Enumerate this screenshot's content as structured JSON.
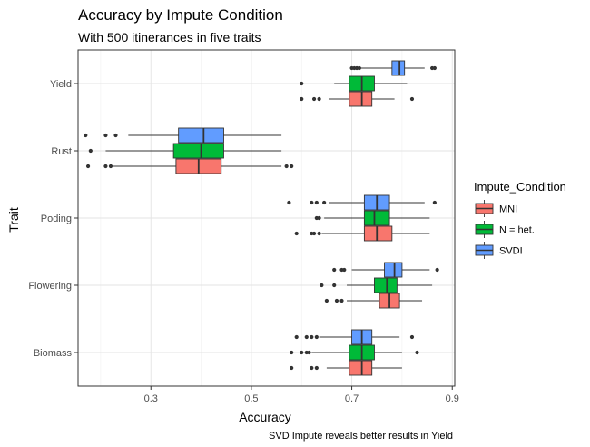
{
  "chart_data": {
    "type": "boxplot",
    "orientation": "horizontal",
    "title": "Accuracy by Impute Condition",
    "subtitle": "With 500 itinerances in five traits",
    "xlabel": "Accuracy",
    "ylabel": "Trait",
    "caption": "SVD Impute reveals better results in Yield",
    "xlim": [
      0.155,
      0.905
    ],
    "xticks": [
      0.3,
      0.5,
      0.7,
      0.9
    ],
    "xtick_labels": [
      "0.3",
      "0.5",
      "0.7",
      "0.9"
    ],
    "categories": [
      "Biomass",
      "Flowering",
      "Poding",
      "Rust",
      "Yield"
    ],
    "grid": true,
    "legend": {
      "title": "Impute_Condition",
      "position": "right",
      "entries": [
        "MNI",
        "N = het.",
        "SVDI"
      ]
    },
    "series": [
      {
        "name": "MNI",
        "color": "#F8766D",
        "boxes": [
          {
            "category": "Biomass",
            "whisker_low": 0.65,
            "q1": 0.695,
            "median": 0.72,
            "q3": 0.74,
            "whisker_high": 0.8,
            "outliers": [
              0.58,
              0.62,
              0.63
            ]
          },
          {
            "category": "Flowering",
            "whisker_low": 0.69,
            "q1": 0.755,
            "median": 0.775,
            "q3": 0.795,
            "whisker_high": 0.84,
            "outliers": [
              0.65,
              0.67,
              0.68
            ]
          },
          {
            "category": "Poding",
            "whisker_low": 0.64,
            "q1": 0.725,
            "median": 0.75,
            "q3": 0.78,
            "whisker_high": 0.855,
            "outliers": [
              0.59,
              0.62,
              0.625,
              0.635
            ]
          },
          {
            "category": "Rust",
            "whisker_low": 0.225,
            "q1": 0.35,
            "median": 0.395,
            "q3": 0.44,
            "whisker_high": 0.56,
            "outliers": [
              0.175,
              0.21,
              0.22,
              0.57,
              0.58
            ]
          },
          {
            "category": "Yield",
            "whisker_low": 0.655,
            "q1": 0.695,
            "median": 0.72,
            "q3": 0.74,
            "whisker_high": 0.785,
            "outliers": [
              0.6,
              0.625,
              0.635,
              0.82
            ]
          }
        ]
      },
      {
        "name": "N = het.",
        "color": "#00BA38",
        "boxes": [
          {
            "category": "Biomass",
            "whisker_low": 0.62,
            "q1": 0.695,
            "median": 0.72,
            "q3": 0.745,
            "whisker_high": 0.8,
            "outliers": [
              0.58,
              0.6,
              0.61,
              0.615,
              0.83
            ]
          },
          {
            "category": "Flowering",
            "whisker_low": 0.69,
            "q1": 0.745,
            "median": 0.77,
            "q3": 0.79,
            "whisker_high": 0.86,
            "outliers": [
              0.64,
              0.665
            ]
          },
          {
            "category": "Poding",
            "whisker_low": 0.645,
            "q1": 0.725,
            "median": 0.745,
            "q3": 0.775,
            "whisker_high": 0.855,
            "outliers": [
              0.63,
              0.635
            ]
          },
          {
            "category": "Rust",
            "whisker_low": 0.21,
            "q1": 0.345,
            "median": 0.4,
            "q3": 0.445,
            "whisker_high": 0.56,
            "outliers": [
              0.18
            ]
          },
          {
            "category": "Yield",
            "whisker_low": 0.665,
            "q1": 0.695,
            "median": 0.72,
            "q3": 0.745,
            "whisker_high": 0.81,
            "outliers": [
              0.6
            ]
          }
        ]
      },
      {
        "name": "SVDI",
        "color": "#619CFF",
        "boxes": [
          {
            "category": "Biomass",
            "whisker_low": 0.635,
            "q1": 0.7,
            "median": 0.72,
            "q3": 0.74,
            "whisker_high": 0.795,
            "outliers": [
              0.59,
              0.61,
              0.62,
              0.63,
              0.82
            ]
          },
          {
            "category": "Flowering",
            "whisker_low": 0.7,
            "q1": 0.765,
            "median": 0.785,
            "q3": 0.8,
            "whisker_high": 0.855,
            "outliers": [
              0.665,
              0.68,
              0.685,
              0.87
            ]
          },
          {
            "category": "Poding",
            "whisker_low": 0.655,
            "q1": 0.725,
            "median": 0.75,
            "q3": 0.775,
            "whisker_high": 0.845,
            "outliers": [
              0.575,
              0.62,
              0.63,
              0.645,
              0.865
            ]
          },
          {
            "category": "Rust",
            "whisker_low": 0.255,
            "q1": 0.355,
            "median": 0.405,
            "q3": 0.445,
            "whisker_high": 0.56,
            "outliers": [
              0.17,
              0.21,
              0.23
            ]
          },
          {
            "category": "Yield",
            "whisker_low": 0.715,
            "q1": 0.78,
            "median": 0.795,
            "q3": 0.805,
            "whisker_high": 0.845,
            "outliers": [
              0.7,
              0.705,
              0.71,
              0.715,
              0.86,
              0.865
            ]
          }
        ]
      }
    ]
  }
}
